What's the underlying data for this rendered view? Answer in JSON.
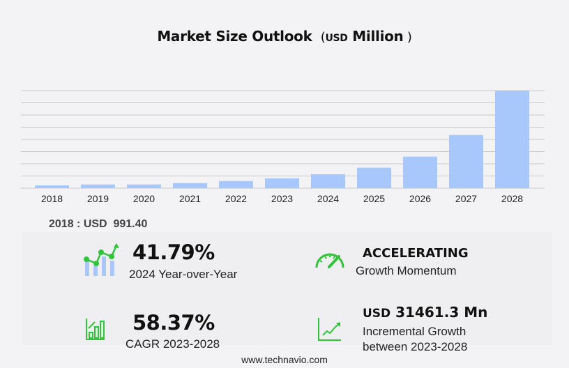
{
  "chart_data": {
    "type": "bar",
    "title": "Market Size Outlook",
    "unit_prefix": "USD",
    "unit": "Million",
    "categories": [
      "2018",
      "2019",
      "2020",
      "2021",
      "2022",
      "2023",
      "2024",
      "2025",
      "2026",
      "2027",
      "2028"
    ],
    "values": [
      991.4,
      1330,
      1330,
      1830,
      2580,
      3511,
      4978,
      7330,
      11330,
      19080,
      34973
    ],
    "ylim": [
      0,
      35000
    ],
    "grid": true,
    "bar_color": "#a8c8fc",
    "grid_color": "#c8c8cc"
  },
  "base_year": {
    "label": "2018 : USD",
    "value": "991.40"
  },
  "stats": {
    "yoy": {
      "value": "41.79%",
      "label": "2024 Year-over-Year",
      "icon": "growth-chart-icon"
    },
    "momentum": {
      "value": "ACCELERATING",
      "label": "Growth Momentum",
      "icon": "speedometer-icon"
    },
    "cagr": {
      "value": "58.37%",
      "label": "CAGR 2023-2028",
      "icon": "bar-growth-icon"
    },
    "incremental": {
      "prefix": "USD",
      "value": "31461.3 Mn",
      "label1": "Incremental Growth",
      "label2": "between 2023-2028",
      "icon": "line-growth-icon"
    }
  },
  "accent_color": "#2fc43a",
  "footer": "www.technavio.com"
}
